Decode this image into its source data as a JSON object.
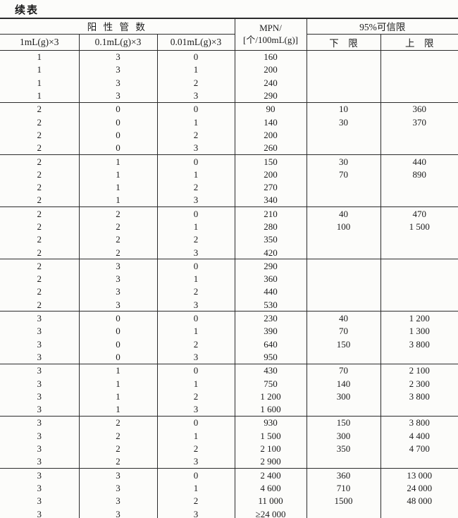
{
  "page_label": "续表",
  "table": {
    "header": {
      "positive_tubes_group": "阳 性 管 数",
      "col_1ml": "1mL(g)×3",
      "col_01ml": "0.1mL(g)×3",
      "col_001ml": "0.01mL(g)×3",
      "mpn_line1": "MPN/",
      "mpn_line2": "[个/100mL(g)]",
      "ci_group": "95%可信限",
      "ci_lower": "下　限",
      "ci_upper": "上　限"
    },
    "rows": [
      [
        "1",
        "3",
        "0",
        "160",
        "",
        ""
      ],
      [
        "1",
        "3",
        "1",
        "200",
        "",
        ""
      ],
      [
        "1",
        "3",
        "2",
        "240",
        "",
        ""
      ],
      [
        "1",
        "3",
        "3",
        "290",
        "",
        ""
      ],
      [
        "2",
        "0",
        "0",
        "90",
        "10",
        "360"
      ],
      [
        "2",
        "0",
        "1",
        "140",
        "30",
        "370"
      ],
      [
        "2",
        "0",
        "2",
        "200",
        "",
        ""
      ],
      [
        "2",
        "0",
        "3",
        "260",
        "",
        ""
      ],
      [
        "2",
        "1",
        "0",
        "150",
        "30",
        "440"
      ],
      [
        "2",
        "1",
        "1",
        "200",
        "70",
        "890"
      ],
      [
        "2",
        "1",
        "2",
        "270",
        "",
        ""
      ],
      [
        "2",
        "1",
        "3",
        "340",
        "",
        ""
      ],
      [
        "2",
        "2",
        "0",
        "210",
        "40",
        "470"
      ],
      [
        "2",
        "2",
        "1",
        "280",
        "100",
        "1 500"
      ],
      [
        "2",
        "2",
        "2",
        "350",
        "",
        ""
      ],
      [
        "2",
        "2",
        "3",
        "420",
        "",
        ""
      ],
      [
        "2",
        "3",
        "0",
        "290",
        "",
        ""
      ],
      [
        "2",
        "3",
        "1",
        "360",
        "",
        ""
      ],
      [
        "2",
        "3",
        "2",
        "440",
        "",
        ""
      ],
      [
        "2",
        "3",
        "3",
        "530",
        "",
        ""
      ],
      [
        "3",
        "0",
        "0",
        "230",
        "40",
        "1 200"
      ],
      [
        "3",
        "0",
        "1",
        "390",
        "70",
        "1 300"
      ],
      [
        "3",
        "0",
        "2",
        "640",
        "150",
        "3 800"
      ],
      [
        "3",
        "0",
        "3",
        "950",
        "",
        ""
      ],
      [
        "3",
        "1",
        "0",
        "430",
        "70",
        "2 100"
      ],
      [
        "3",
        "1",
        "1",
        "750",
        "140",
        "2 300"
      ],
      [
        "3",
        "1",
        "2",
        "1 200",
        "300",
        "3 800"
      ],
      [
        "3",
        "1",
        "3",
        "1 600",
        "",
        ""
      ],
      [
        "3",
        "2",
        "0",
        "930",
        "150",
        "3 800"
      ],
      [
        "3",
        "2",
        "1",
        "1 500",
        "300",
        "4 400"
      ],
      [
        "3",
        "2",
        "2",
        "2 100",
        "350",
        "4 700"
      ],
      [
        "3",
        "2",
        "3",
        "2 900",
        "",
        ""
      ],
      [
        "3",
        "3",
        "0",
        "2 400",
        "360",
        "13 000"
      ],
      [
        "3",
        "3",
        "1",
        "4 600",
        "710",
        "24 000"
      ],
      [
        "3",
        "3",
        "2",
        "11 000",
        "1500",
        "48 000"
      ],
      [
        "3",
        "3",
        "3",
        "≥24 000",
        "",
        ""
      ]
    ],
    "group_size": 4,
    "line_color": "#2b2b2b"
  }
}
